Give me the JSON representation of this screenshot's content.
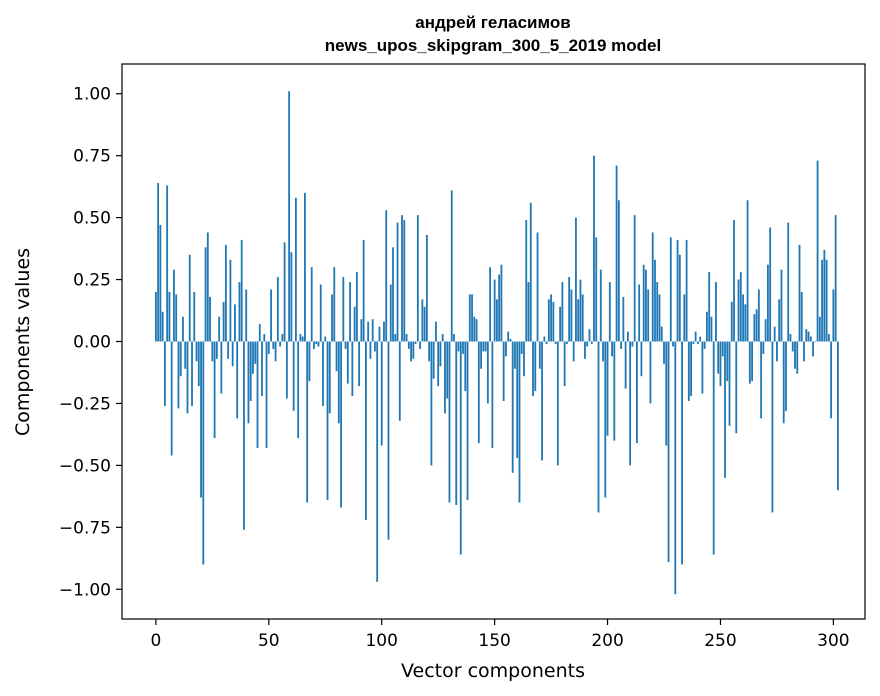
{
  "chart_data": {
    "type": "bar",
    "title_line1": "андрей геласимов",
    "title_line2": "news_upos_skipgram_300_5_2019 model",
    "xlabel": "Vector components",
    "ylabel": "Components values",
    "xlim": [
      -15,
      314
    ],
    "ylim": [
      -1.12,
      1.12
    ],
    "xticks": [
      0,
      50,
      100,
      150,
      200,
      250,
      300
    ],
    "yticks": [
      1.0,
      0.75,
      0.5,
      0.25,
      0.0,
      -0.25,
      -0.5,
      -0.75,
      -1.0
    ],
    "xtick_labels": [
      "0",
      "50",
      "100",
      "150",
      "200",
      "250",
      "300"
    ],
    "ytick_labels": [
      "1.00",
      "0.75",
      "0.50",
      "0.25",
      "0.00",
      "−0.25",
      "−0.50",
      "−0.75",
      "−1.00"
    ],
    "bar_color": "#1f77b4",
    "grid": false,
    "legend": false,
    "values": [
      0.2,
      0.64,
      0.47,
      0.12,
      -0.26,
      0.63,
      0.2,
      -0.46,
      0.29,
      0.19,
      -0.27,
      -0.14,
      0.1,
      -0.11,
      -0.29,
      0.35,
      -0.26,
      0.2,
      -0.08,
      -0.18,
      -0.63,
      -0.9,
      0.38,
      0.44,
      0.18,
      -0.08,
      -0.39,
      -0.07,
      0.1,
      -0.21,
      0.16,
      0.39,
      -0.07,
      0.33,
      -0.1,
      0.15,
      -0.31,
      0.24,
      0.41,
      -0.76,
      0.21,
      -0.33,
      -0.24,
      -0.13,
      -0.09,
      -0.43,
      0.07,
      -0.22,
      0.03,
      -0.43,
      -0.05,
      0.21,
      -0.03,
      -0.08,
      0.26,
      -0.02,
      0.03,
      0.4,
      -0.23,
      1.01,
      0.36,
      -0.28,
      0.58,
      -0.39,
      0.03,
      0.02,
      0.6,
      -0.65,
      -0.16,
      0.3,
      -0.03,
      -0.01,
      -0.02,
      0.23,
      -0.26,
      0.02,
      -0.64,
      -0.29,
      0.19,
      0.3,
      -0.12,
      -0.33,
      -0.67,
      0.26,
      -0.03,
      -0.17,
      0.24,
      -0.22,
      0.14,
      0.28,
      -0.18,
      0.09,
      0.41,
      -0.72,
      0.08,
      -0.07,
      0.09,
      -0.04,
      -0.97,
      0.06,
      -0.42,
      0.08,
      0.53,
      -0.8,
      0.23,
      0.38,
      0.03,
      0.48,
      -0.32,
      0.51,
      0.49,
      0.03,
      -0.03,
      -0.08,
      -0.07,
      -0.01,
      0.51,
      -0.03,
      0.17,
      0.14,
      0.43,
      -0.08,
      -0.5,
      -0.15,
      0.08,
      -0.18,
      -0.1,
      0.03,
      -0.29,
      -0.23,
      -0.65,
      0.61,
      0.03,
      -0.66,
      -0.04,
      -0.86,
      -0.05,
      -0.2,
      -0.64,
      0.19,
      0.19,
      0.1,
      0.09,
      -0.41,
      -0.11,
      -0.04,
      -0.04,
      -0.25,
      0.3,
      -0.43,
      0.25,
      0.17,
      0.27,
      0.31,
      -0.24,
      -0.06,
      0.04,
      0.01,
      -0.53,
      -0.11,
      -0.47,
      -0.65,
      -0.05,
      -0.14,
      0.49,
      0.24,
      0.56,
      -0.22,
      -0.2,
      0.44,
      -0.11,
      -0.48,
      0.02,
      -0.01,
      0.17,
      0.19,
      0.16,
      -0.01,
      -0.5,
      0.14,
      0.24,
      -0.18,
      -0.01,
      0.26,
      0.21,
      -0.08,
      0.5,
      0.17,
      0.25,
      0.19,
      -0.07,
      -0.02,
      0.05,
      -0.01,
      0.75,
      0.42,
      -0.69,
      0.29,
      -0.08,
      -0.63,
      -0.38,
      0.24,
      -0.06,
      -0.4,
      0.71,
      0.57,
      -0.03,
      0.18,
      -0.19,
      0.04,
      -0.5,
      -0.02,
      0.51,
      -0.41,
      0.23,
      -0.14,
      0.31,
      0.29,
      0.21,
      -0.25,
      0.44,
      0.33,
      0.24,
      0.19,
      0.06,
      -0.09,
      -0.42,
      -0.89,
      0.42,
      -0.02,
      -1.02,
      0.41,
      0.35,
      -0.9,
      0.19,
      0.41,
      -0.24,
      -0.22,
      -0.01,
      0.04,
      -0.01,
      0.02,
      -0.21,
      -0.03,
      0.12,
      0.28,
      0.1,
      -0.86,
      0.24,
      -0.13,
      -0.18,
      -0.06,
      -0.55,
      -0.16,
      -0.34,
      0.16,
      0.49,
      -0.37,
      0.25,
      0.28,
      0.19,
      0.15,
      0.57,
      -0.17,
      -0.16,
      0.11,
      0.13,
      0.21,
      -0.31,
      -0.05,
      0.09,
      0.31,
      0.46,
      -0.69,
      0.06,
      -0.08,
      0.17,
      0.29,
      -0.33,
      -0.28,
      0.48,
      0.03,
      -0.04,
      -0.11,
      -0.13,
      0.39,
      0.2,
      -0.08,
      0.05,
      0.04,
      0.02,
      -0.06,
      0.0,
      0.73,
      0.1,
      0.33,
      0.37,
      0.33,
      0.03,
      -0.31,
      0.21,
      0.51,
      -0.6
    ]
  }
}
